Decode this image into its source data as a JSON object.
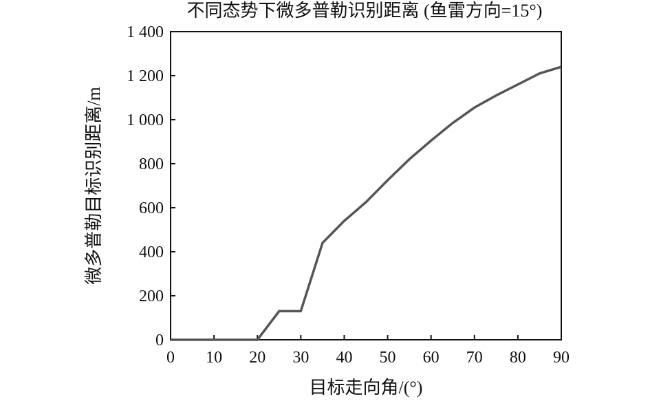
{
  "chart_data": {
    "type": "line",
    "title": "不同态势下微多普勒识别距离 (鱼雷方向=15°)",
    "xlabel": "目标走向角/(°)",
    "ylabel": "微多普勒目标识别距离/m",
    "xlim": [
      0,
      90
    ],
    "ylim": [
      0,
      1400
    ],
    "x_ticks": [
      0,
      10,
      20,
      30,
      40,
      50,
      60,
      70,
      80,
      90
    ],
    "x_tick_labels": [
      "0",
      "10",
      "20",
      "30",
      "40",
      "50",
      "60",
      "70",
      "80",
      "90"
    ],
    "y_ticks": [
      0,
      200,
      400,
      600,
      800,
      1000,
      1200,
      1400
    ],
    "y_tick_labels": [
      "0",
      "200",
      "400",
      "600",
      "800",
      "1 000",
      "1 200",
      "1 400"
    ],
    "grid": false,
    "line_color": "#555555",
    "series": [
      {
        "x": [
          0,
          5,
          10,
          15,
          20,
          25,
          30,
          35,
          40,
          45,
          50,
          55,
          60,
          65,
          70,
          75,
          80,
          85,
          90
        ],
        "y": [
          0,
          0,
          0,
          0,
          0,
          130,
          130,
          440,
          540,
          625,
          725,
          820,
          905,
          985,
          1055,
          1110,
          1160,
          1210,
          1240
        ]
      }
    ]
  }
}
